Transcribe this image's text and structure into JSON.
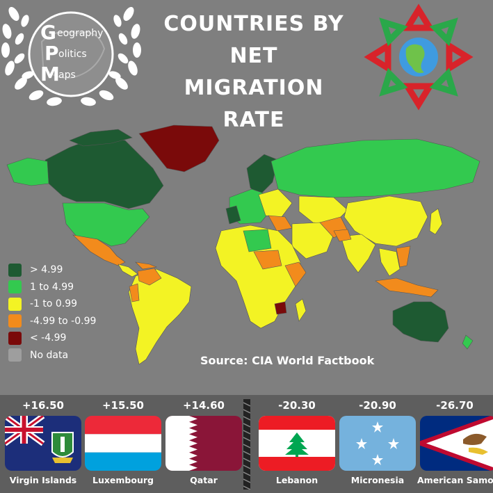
{
  "title": "COUNTRIES BY NET MIGRATION RATE",
  "logo": {
    "letters": [
      "G",
      "P",
      "M"
    ],
    "words": [
      "eography",
      "olitics",
      "aps"
    ]
  },
  "source": "Source: CIA World Factbook",
  "legend": [
    {
      "label": "> 4.99",
      "color": "#1e5a32"
    },
    {
      "label": "1 to 4.99",
      "color": "#33c94f"
    },
    {
      "label": "-1 to 0.99",
      "color": "#f3f324"
    },
    {
      "label": "-4.99 to -0.99",
      "color": "#f28b1c"
    },
    {
      "label": "< -4.99",
      "color": "#7a0a0a"
    },
    {
      "label": "No data",
      "color": "#9e9e9e"
    }
  ],
  "countries": [
    {
      "name": "Virgin Islands",
      "rate": "+16.50"
    },
    {
      "name": "Luxembourg",
      "rate": "+15.50"
    },
    {
      "name": "Qatar",
      "rate": "+14.60"
    },
    {
      "name": "Lebanon",
      "rate": "-20.30"
    },
    {
      "name": "Micronesia",
      "rate": "-20.90"
    },
    {
      "name": "American Samoa",
      "rate": "-26.70"
    }
  ],
  "icons": [
    "laurel-wreath-icon",
    "globe-arrows-icon"
  ]
}
